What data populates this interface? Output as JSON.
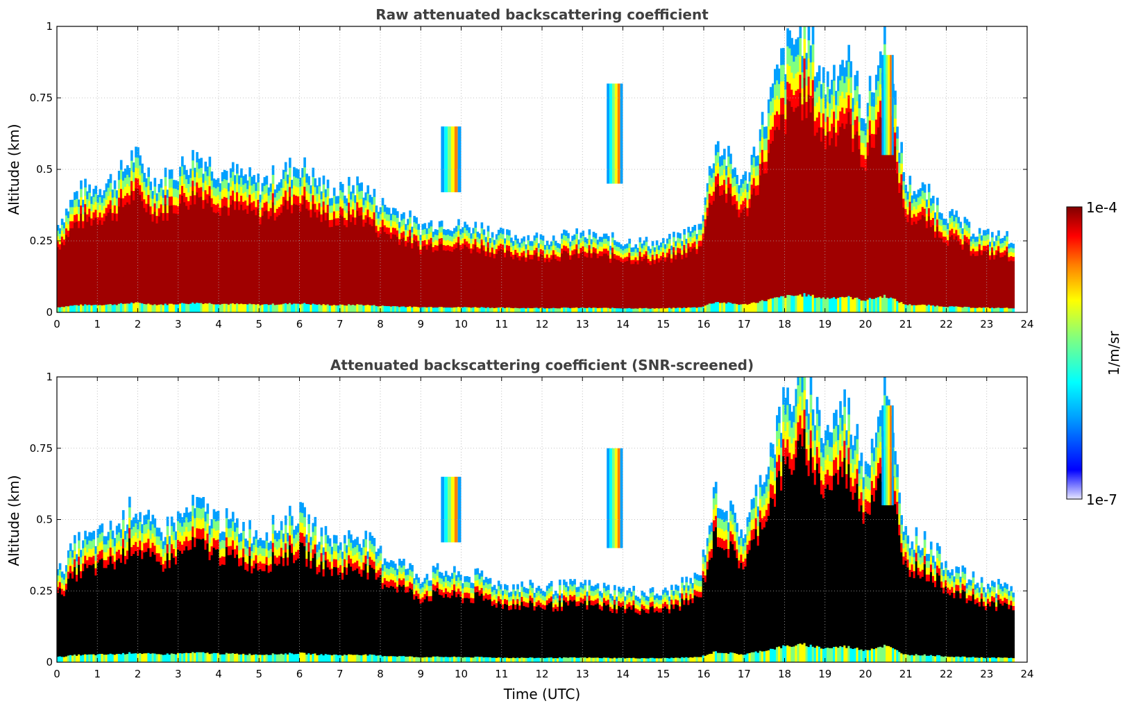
{
  "chart_data": [
    {
      "type": "heatmap",
      "title": "Raw attenuated backscattering coefficient",
      "xlabel": "",
      "ylabel": "Altitude (km)",
      "xlim": [
        0,
        24
      ],
      "ylim": [
        0,
        1
      ],
      "x_ticks": [
        "0",
        "1",
        "2",
        "3",
        "4",
        "5",
        "6",
        "7",
        "8",
        "9",
        "10",
        "11",
        "12",
        "13",
        "14",
        "15",
        "16",
        "17",
        "18",
        "19",
        "20",
        "21",
        "22",
        "23",
        "24"
      ],
      "y_ticks": [
        "0",
        "0.25",
        "0.5",
        "0.75",
        "1"
      ],
      "grid": true,
      "below_range_color": "#a00000",
      "layer_top_km": {
        "time_utc": [
          0,
          0.5,
          1,
          1.5,
          1.9,
          2.5,
          3,
          3.5,
          4,
          4.5,
          5,
          5.5,
          6,
          6.5,
          7,
          7.5,
          8,
          8.5,
          9,
          9.5,
          10,
          10.5,
          11,
          12,
          13,
          14,
          15,
          15.9,
          16.3,
          17,
          18,
          18.5,
          19,
          19.5,
          20,
          20.5,
          21,
          21.5,
          22,
          22.5,
          23,
          23.7
        ],
        "altitude_km": [
          0.3,
          0.42,
          0.44,
          0.47,
          0.55,
          0.45,
          0.5,
          0.55,
          0.5,
          0.48,
          0.45,
          0.48,
          0.52,
          0.45,
          0.42,
          0.45,
          0.38,
          0.35,
          0.3,
          0.32,
          0.3,
          0.3,
          0.27,
          0.26,
          0.27,
          0.25,
          0.24,
          0.3,
          0.6,
          0.45,
          0.9,
          1.0,
          0.8,
          0.9,
          0.7,
          0.95,
          0.45,
          0.42,
          0.35,
          0.3,
          0.27,
          0.26
        ]
      },
      "aerosol_cloud_patches": [
        {
          "time_utc": [
            9.5,
            10.0
          ],
          "altitude_km": [
            0.42,
            0.65
          ]
        },
        {
          "time_utc": [
            13.6,
            14.0
          ],
          "altitude_km": [
            0.45,
            0.8
          ]
        },
        {
          "time_utc": [
            20.4,
            20.7
          ],
          "altitude_km": [
            0.55,
            0.9
          ]
        }
      ]
    },
    {
      "type": "heatmap",
      "title": "Attenuated backscattering coefficient (SNR-screened)",
      "xlabel": "Time (UTC)",
      "ylabel": "Altitude (km)",
      "xlim": [
        0,
        24
      ],
      "ylim": [
        0,
        1
      ],
      "x_ticks": [
        "0",
        "1",
        "2",
        "3",
        "4",
        "5",
        "6",
        "7",
        "8",
        "9",
        "10",
        "11",
        "12",
        "13",
        "14",
        "15",
        "16",
        "17",
        "18",
        "19",
        "20",
        "21",
        "22",
        "23",
        "24"
      ],
      "y_ticks": [
        "0",
        "0.25",
        "0.5",
        "0.75",
        "1"
      ],
      "grid": true,
      "below_range_color": "#000000",
      "layer_top_km": {
        "time_utc": [
          0,
          0.5,
          1,
          1.5,
          1.9,
          2.5,
          3,
          3.5,
          4,
          4.5,
          5,
          5.5,
          6,
          6.5,
          7,
          7.5,
          8,
          8.5,
          9,
          9.5,
          10,
          10.5,
          11,
          12,
          13,
          14,
          15,
          15.9,
          16.3,
          17,
          18,
          18.5,
          19,
          19.5,
          20,
          20.5,
          21,
          21.5,
          22,
          22.5,
          23,
          23.7
        ],
        "altitude_km": [
          0.3,
          0.42,
          0.44,
          0.47,
          0.55,
          0.45,
          0.5,
          0.55,
          0.5,
          0.48,
          0.45,
          0.48,
          0.52,
          0.45,
          0.42,
          0.45,
          0.38,
          0.35,
          0.3,
          0.32,
          0.3,
          0.3,
          0.27,
          0.26,
          0.27,
          0.25,
          0.24,
          0.3,
          0.6,
          0.45,
          0.9,
          1.0,
          0.8,
          0.9,
          0.7,
          0.95,
          0.45,
          0.42,
          0.35,
          0.3,
          0.27,
          0.26
        ]
      },
      "aerosol_cloud_patches": [
        {
          "time_utc": [
            9.5,
            10.0
          ],
          "altitude_km": [
            0.42,
            0.65
          ]
        },
        {
          "time_utc": [
            13.6,
            14.0
          ],
          "altitude_km": [
            0.4,
            0.75
          ]
        },
        {
          "time_utc": [
            20.4,
            20.7
          ],
          "altitude_km": [
            0.55,
            0.9
          ]
        }
      ]
    }
  ],
  "colorbar": {
    "label": "1/m/sr",
    "min_label": "1e-7",
    "max_label": "1e-4",
    "min": 1e-07,
    "max": 0.0001,
    "scale": "log",
    "colormap": "jet",
    "colors": [
      "#e6e6ff",
      "#0000ff",
      "#00a0ff",
      "#00ffff",
      "#80ff80",
      "#ffff00",
      "#ff8000",
      "#ff0000",
      "#800000"
    ]
  }
}
